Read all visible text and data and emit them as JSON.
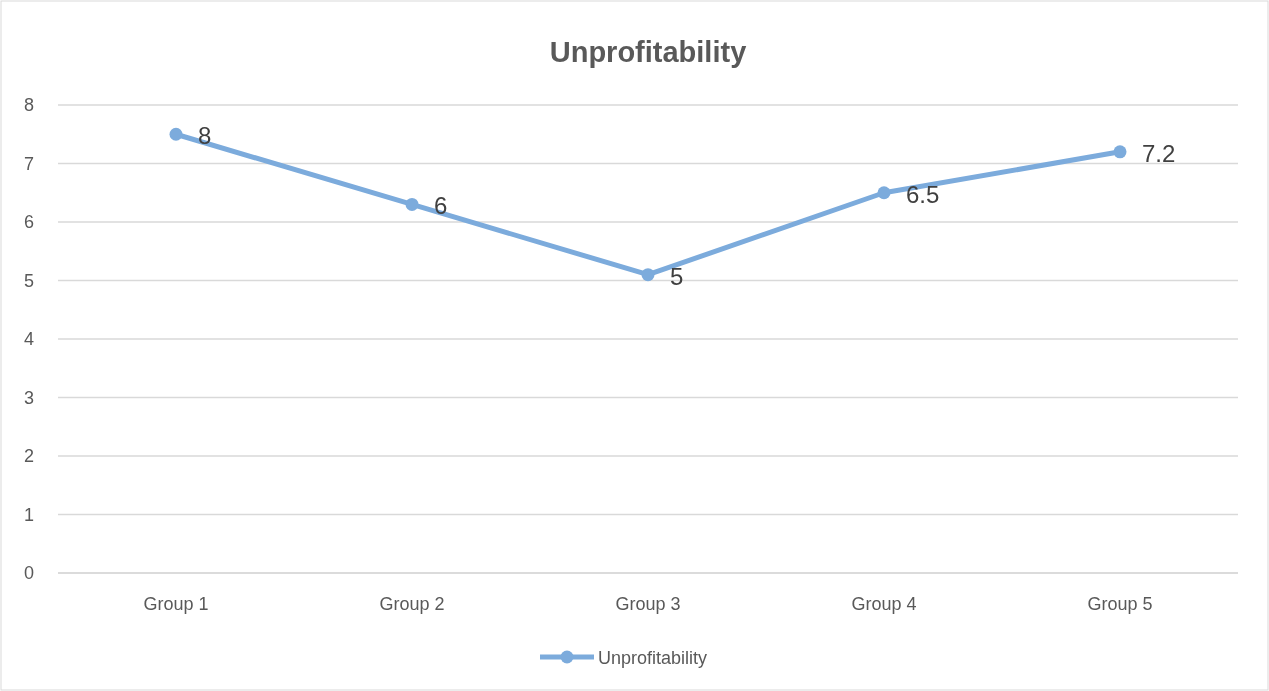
{
  "chart_data": {
    "type": "line",
    "title": "Unprofitability",
    "categories": [
      "Group 1",
      "Group 2",
      "Group 3",
      "Group 4",
      "Group 5"
    ],
    "series": [
      {
        "name": "Unprofitability",
        "color": "#7cabdc",
        "values": [
          7.5,
          6.3,
          5.1,
          6.5,
          7.2
        ],
        "value_labels": [
          "8",
          "6",
          "5",
          "6.5",
          "7.2"
        ]
      }
    ],
    "ylim": [
      0,
      8
    ],
    "yticks": [
      0,
      1,
      2,
      3,
      4,
      5,
      6,
      7,
      8
    ],
    "grid": "y",
    "legend": "bottom",
    "marker": "circle",
    "line_style": "solid"
  }
}
